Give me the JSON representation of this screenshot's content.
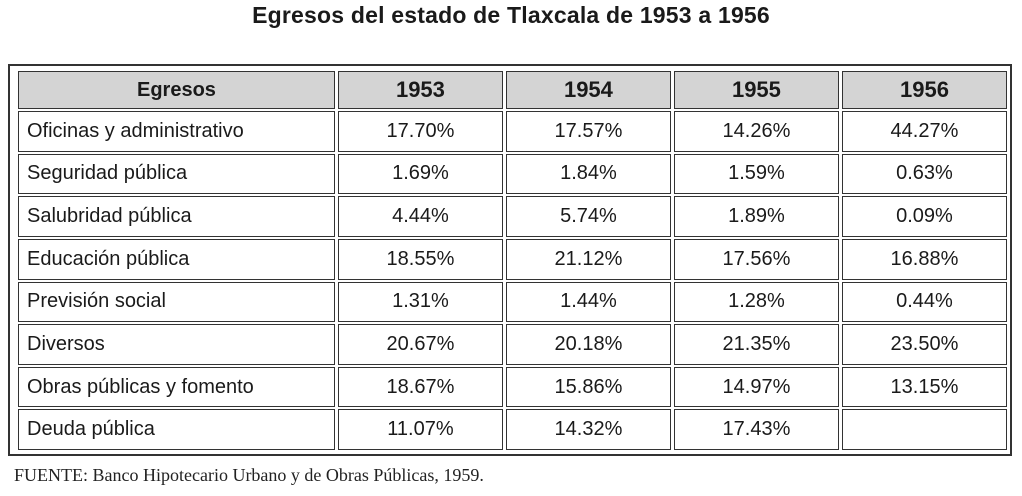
{
  "title": "Egresos del estado de Tlaxcala de 1953 a 1956",
  "table": {
    "headers": [
      "Egresos",
      "1953",
      "1954",
      "1955",
      "1956"
    ],
    "rows": [
      [
        "Oficinas y administrativo",
        "17.70%",
        "17.57%",
        "14.26%",
        "44.27%"
      ],
      [
        "Seguridad pública",
        "1.69%",
        "1.84%",
        "1.59%",
        "0.63%"
      ],
      [
        "Salubridad pública",
        "4.44%",
        "5.74%",
        "1.89%",
        "0.09%"
      ],
      [
        "Educación pública",
        "18.55%",
        "21.12%",
        "17.56%",
        "16.88%"
      ],
      [
        "Previsión social",
        "1.31%",
        "1.44%",
        "1.28%",
        "0.44%"
      ],
      [
        "Diversos",
        "20.67%",
        "20.18%",
        "21.35%",
        "23.50%"
      ],
      [
        "Obras públicas y fomento",
        "18.67%",
        "15.86%",
        "14.97%",
        "13.15%"
      ],
      [
        "Deuda pública",
        "11.07%",
        "14.32%",
        "17.43%",
        ""
      ]
    ]
  },
  "source": "FUENTE: Banco Hipotecario Urbano y de Obras Públicas, 1959."
}
